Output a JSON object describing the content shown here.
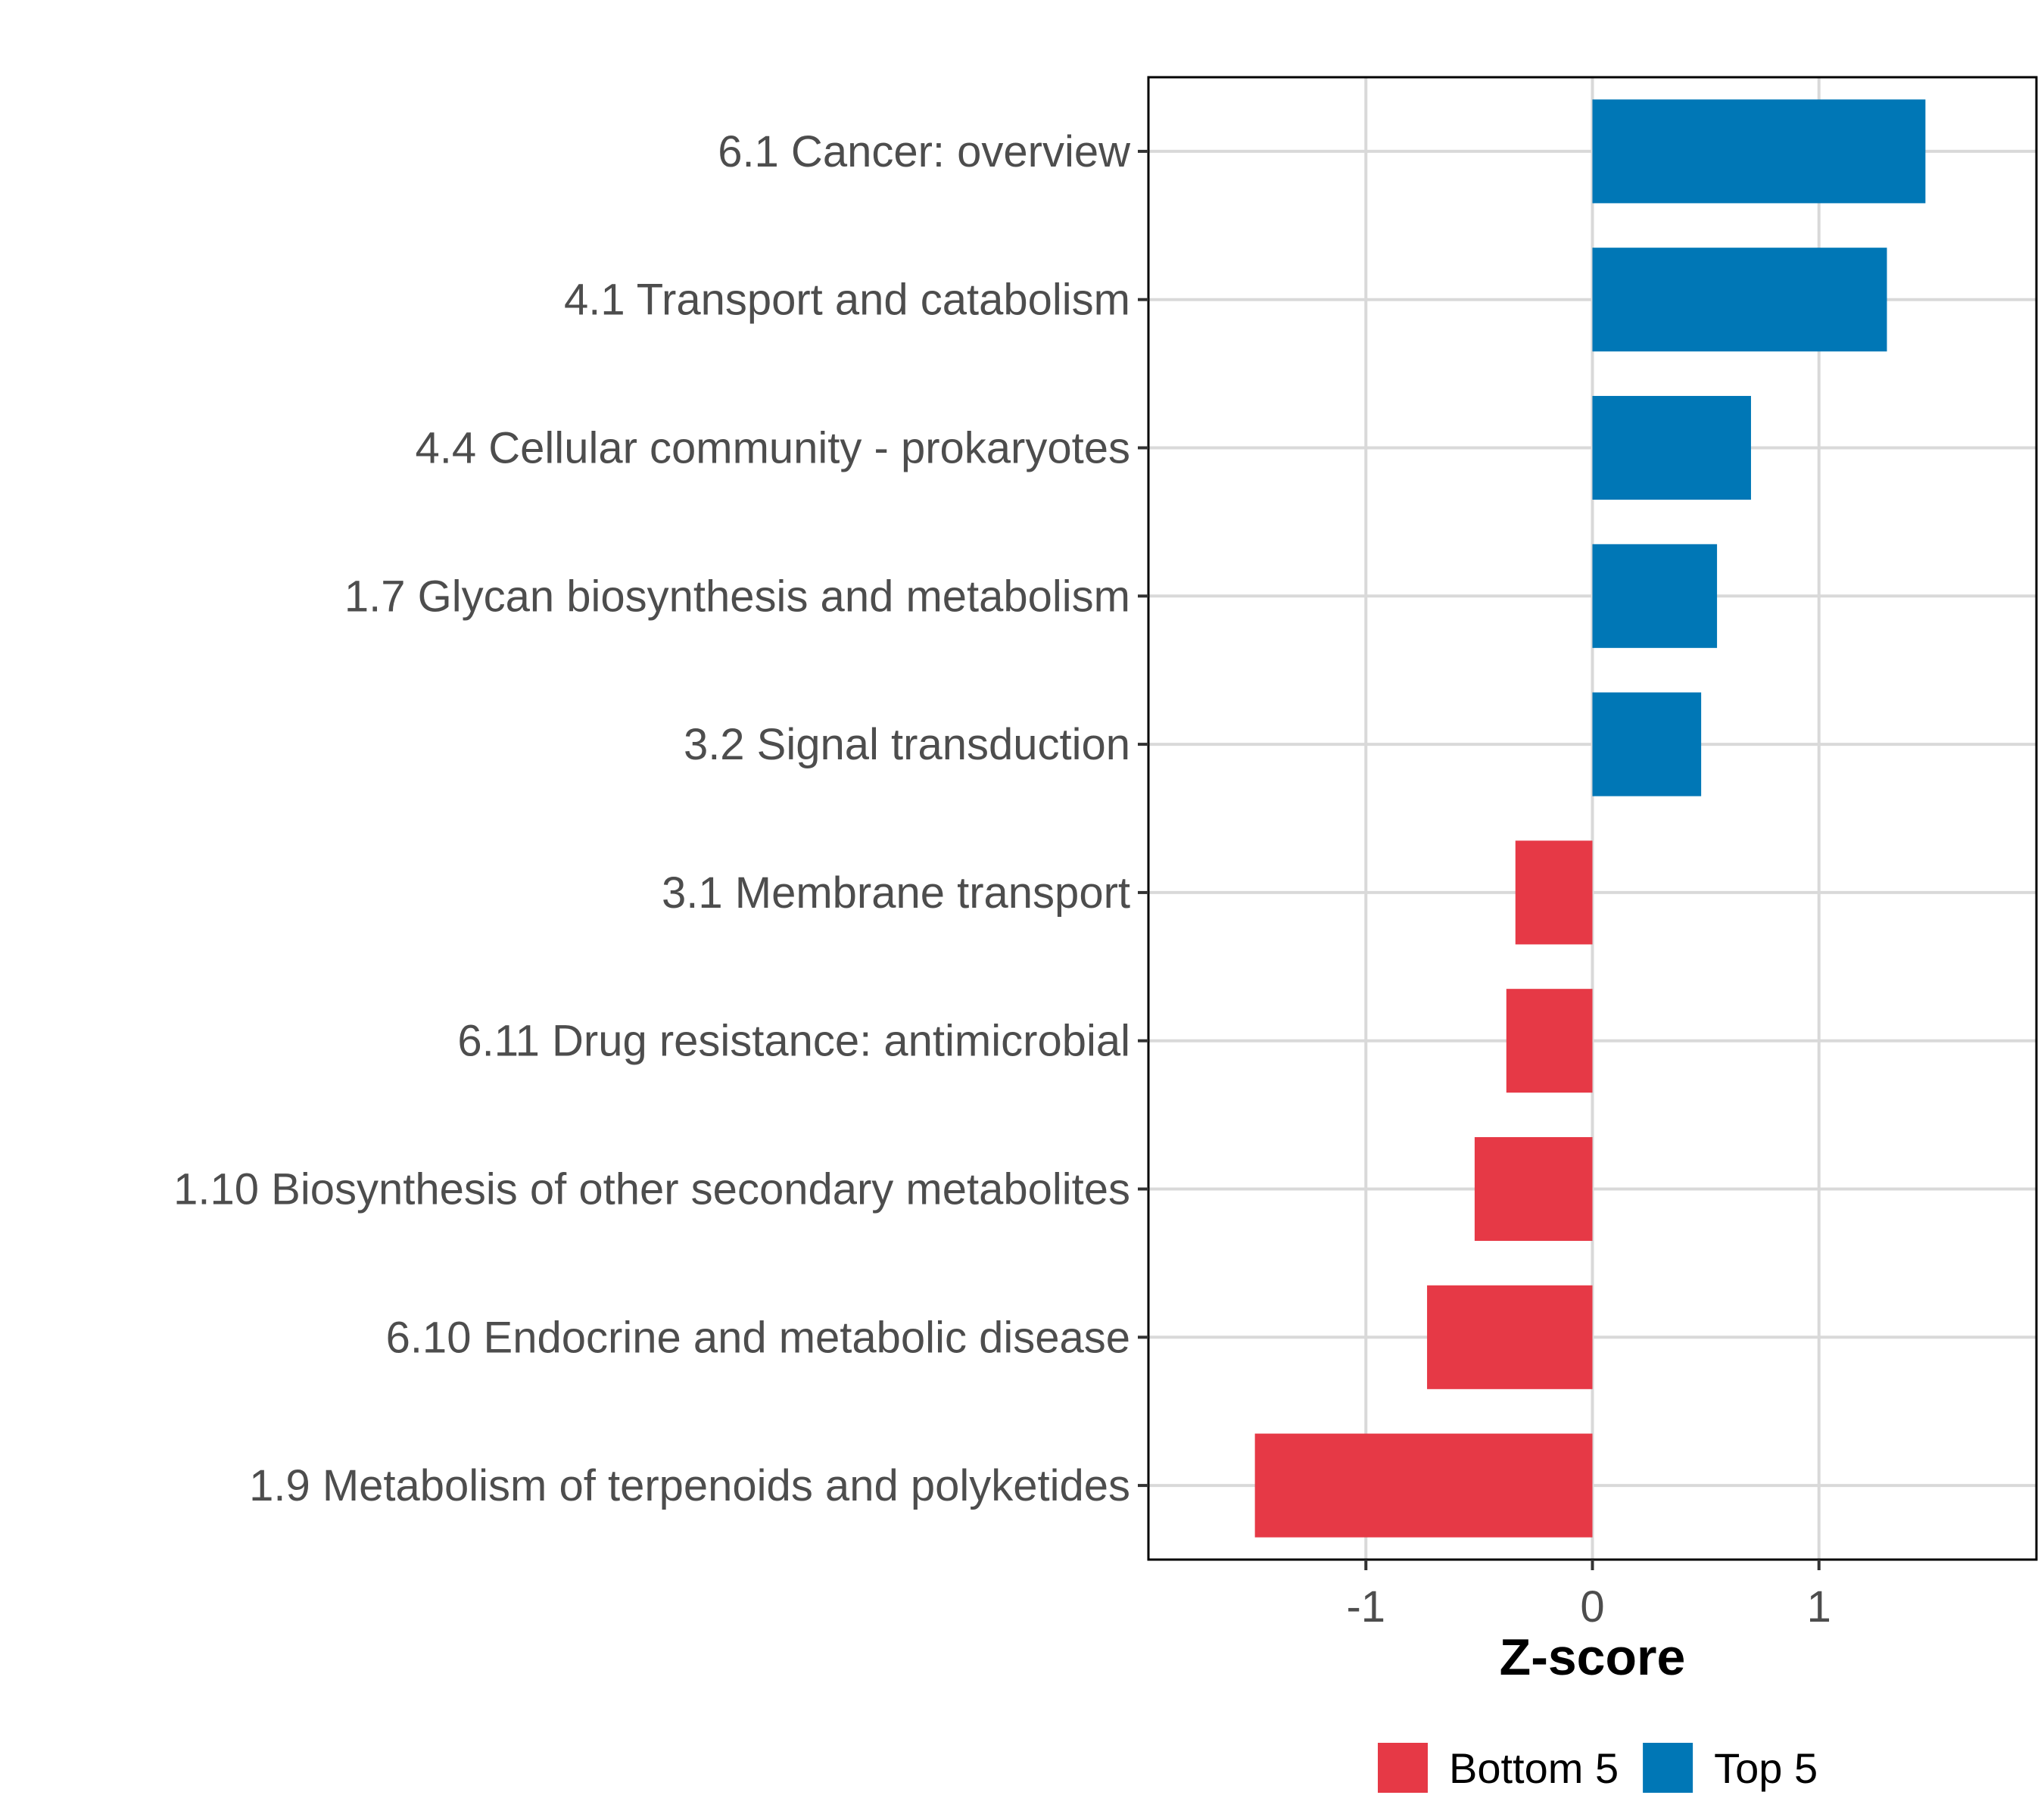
{
  "chart_data": {
    "type": "bar",
    "orientation": "horizontal",
    "title": "",
    "xlabel": "Z-score",
    "ylabel": "",
    "xlim": [
      -1.96,
      1.96
    ],
    "xticks": [
      -1,
      0,
      1
    ],
    "grid": true,
    "legend_position": "bottom",
    "categories": [
      "6.1 Cancer: overview",
      "4.1 Transport and catabolism",
      "4.4 Cellular community - prokaryotes",
      "1.7 Glycan biosynthesis and metabolism",
      "3.2 Signal transduction",
      "3.1 Membrane transport",
      "6.11 Drug resistance: antimicrobial",
      "1.10 Biosynthesis of other secondary metabolites",
      "6.10 Endocrine and metabolic disease",
      "1.9 Metabolism of terpenoids and polyketides"
    ],
    "values": [
      1.47,
      1.3,
      0.7,
      0.55,
      0.48,
      -0.34,
      -0.38,
      -0.52,
      -0.73,
      -1.49
    ],
    "groups": [
      "Top 5",
      "Top 5",
      "Top 5",
      "Top 5",
      "Top 5",
      "Bottom 5",
      "Bottom 5",
      "Bottom 5",
      "Bottom 5",
      "Bottom 5"
    ],
    "legend": [
      {
        "name": "Bottom 5",
        "color": "#E63946"
      },
      {
        "name": "Top 5",
        "color": "#0077B6"
      }
    ]
  }
}
